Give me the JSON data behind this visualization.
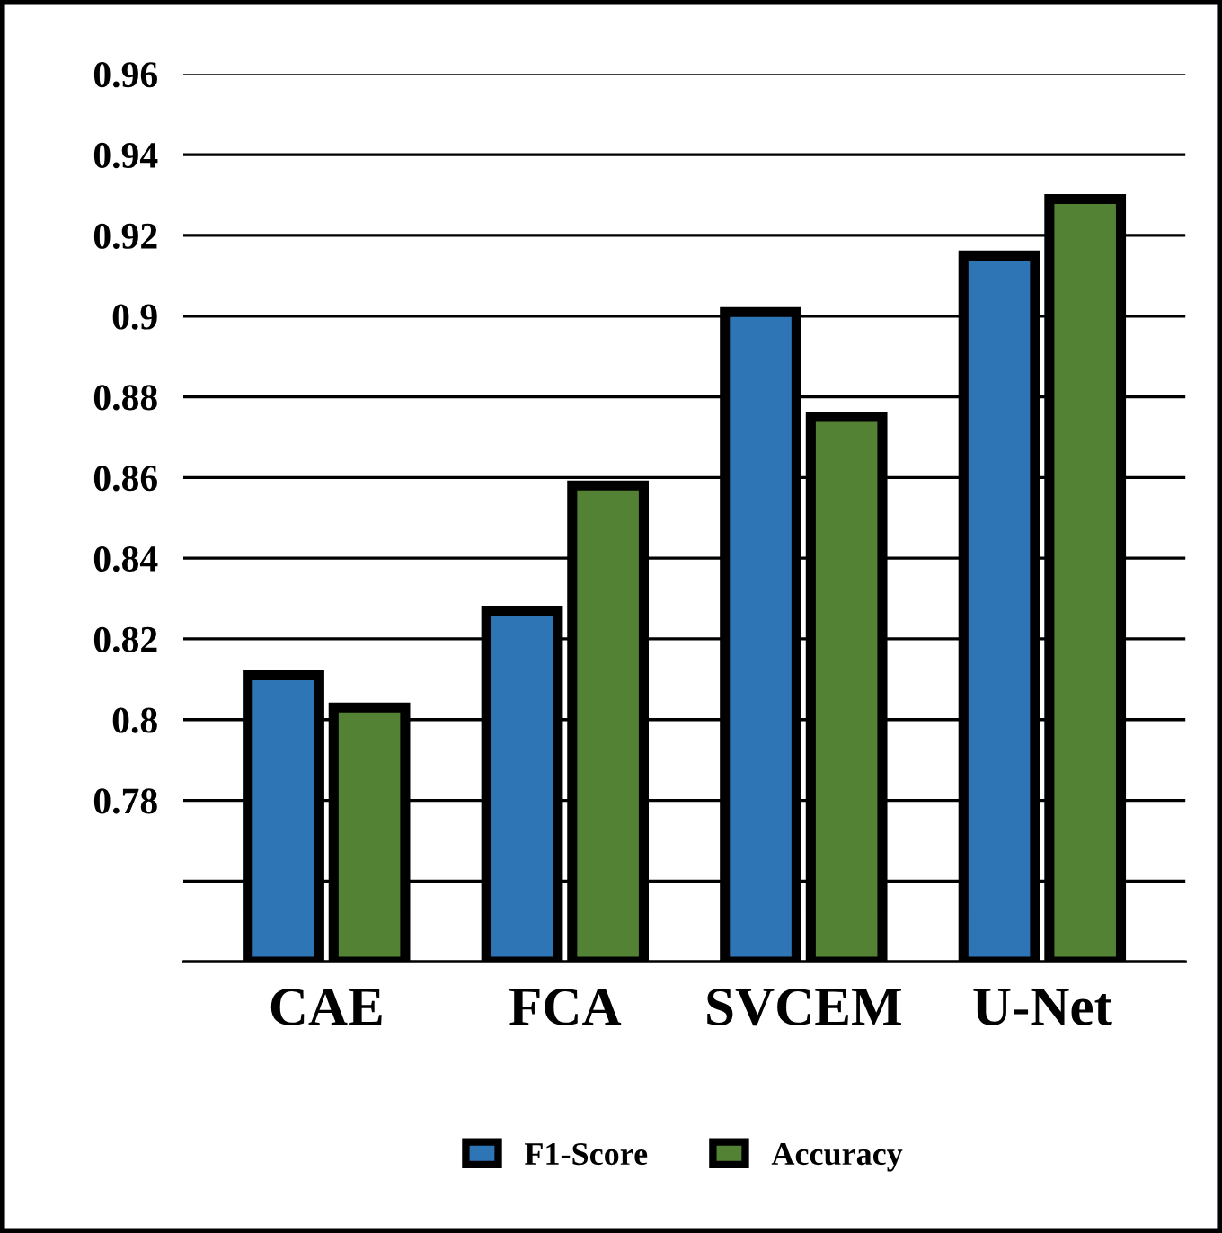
{
  "chart_data": {
    "type": "bar",
    "categories": [
      "CAE",
      "FCA",
      "SVCEM",
      "U-Net"
    ],
    "series": [
      {
        "name": "F1-Score",
        "color": "#2e75b6",
        "values": [
          0.811,
          0.827,
          0.901,
          0.915
        ]
      },
      {
        "name": "Accuracy",
        "color": "#548235",
        "values": [
          0.803,
          0.858,
          0.875,
          0.929
        ]
      }
    ],
    "ylim": [
      0.74,
      0.96
    ],
    "yticks": [
      {
        "value": 0.74,
        "label": null
      },
      {
        "value": 0.76,
        "label": null
      },
      0.78,
      0.8,
      0.82,
      0.84,
      0.86,
      0.88,
      0.9,
      0.92,
      0.94,
      0.96
    ],
    "grid": "y",
    "legend": "bottom"
  }
}
